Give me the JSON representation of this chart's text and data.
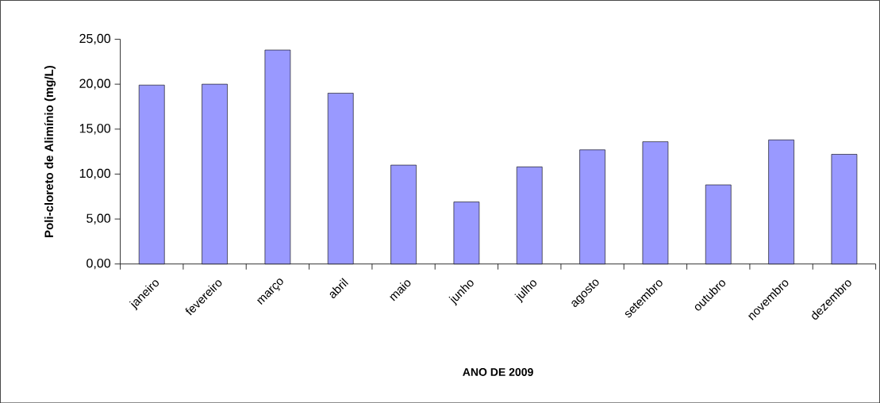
{
  "chart_data": {
    "type": "bar",
    "xlabel": "ANO DE 2009",
    "ylabel": "Poli-cloreto de Alimínio  (mg/L)",
    "categories": [
      "janeiro",
      "fevereiro",
      "março",
      "abril",
      "maio",
      "junho",
      "julho",
      "agosto",
      "setembro",
      "outubro",
      "novembro",
      "dezembro"
    ],
    "values": [
      19.9,
      20.0,
      23.8,
      19.0,
      11.0,
      6.9,
      10.8,
      12.7,
      13.6,
      8.8,
      13.8,
      12.2
    ],
    "color": "#9999ff",
    "ylim": [
      0,
      25
    ],
    "yticks": [
      {
        "value": 0,
        "label": "0,00"
      },
      {
        "value": 5,
        "label": "5,00"
      },
      {
        "value": 10,
        "label": "10,00"
      },
      {
        "value": 15,
        "label": "15,00"
      },
      {
        "value": 20,
        "label": "20,00"
      },
      {
        "value": 25,
        "label": "25,00"
      }
    ],
    "grid": false
  }
}
